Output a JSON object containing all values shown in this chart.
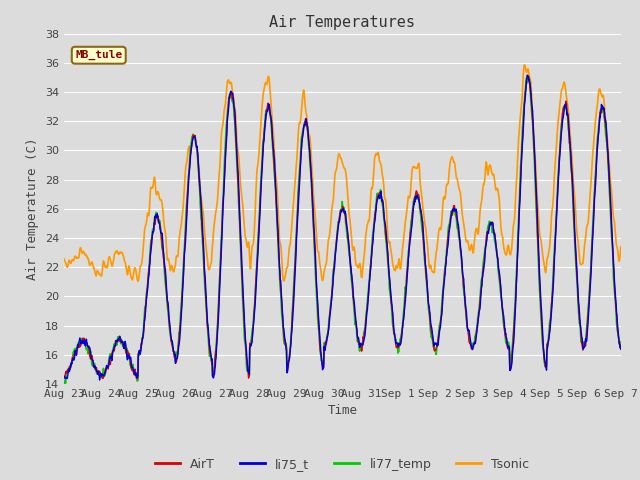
{
  "title": "Air Temperatures",
  "xlabel": "Time",
  "ylabel": "Air Temperature (C)",
  "ylim": [
    14,
    38
  ],
  "n_days": 15,
  "pts_per_day": 96,
  "x_tick_labels": [
    "Aug 23",
    "Aug 24",
    "Aug 25",
    "Aug 26",
    "Aug 27",
    "Aug 28",
    "Aug 29",
    "Aug 30",
    "Aug 31",
    "Sep 1",
    "Sep 2",
    "Sep 3",
    "Sep 4",
    "Sep 5",
    "Sep 6",
    "Sep 7"
  ],
  "annotation_text": "MB_tule",
  "background_color": "#dcdcdc",
  "axes_bg_color": "#dcdcdc",
  "grid_color": "#ffffff",
  "line_colors": {
    "AirT": "#dd0000",
    "li75_t": "#0000dd",
    "li77_temp": "#00cc00",
    "Tsonic": "#ff9900"
  },
  "line_widths": {
    "AirT": 1.0,
    "li75_t": 1.0,
    "li77_temp": 1.2,
    "Tsonic": 1.2
  },
  "day_peaks": [
    17,
    17,
    25.5,
    31,
    34,
    33,
    32,
    26,
    27,
    27,
    26,
    25,
    35,
    33,
    33
  ],
  "day_mins": [
    14.5,
    14.5,
    16,
    15.5,
    14.5,
    16.5,
    15,
    16.5,
    16.5,
    16.5,
    16.5,
    16.5,
    15,
    16.5,
    16.5
  ],
  "tsonic_peaks": [
    23,
    23,
    28,
    31,
    35,
    35,
    33.5,
    29.5,
    29.5,
    29,
    29,
    29,
    36,
    34.5,
    34
  ],
  "tsonic_mins": [
    21.5,
    21.5,
    21.5,
    22,
    24,
    21.5,
    21.5,
    21.5,
    21.5,
    21.5,
    23,
    23,
    22,
    22,
    23
  ],
  "title_fontsize": 11,
  "label_fontsize": 9,
  "tick_fontsize": 8,
  "legend_fontsize": 9
}
